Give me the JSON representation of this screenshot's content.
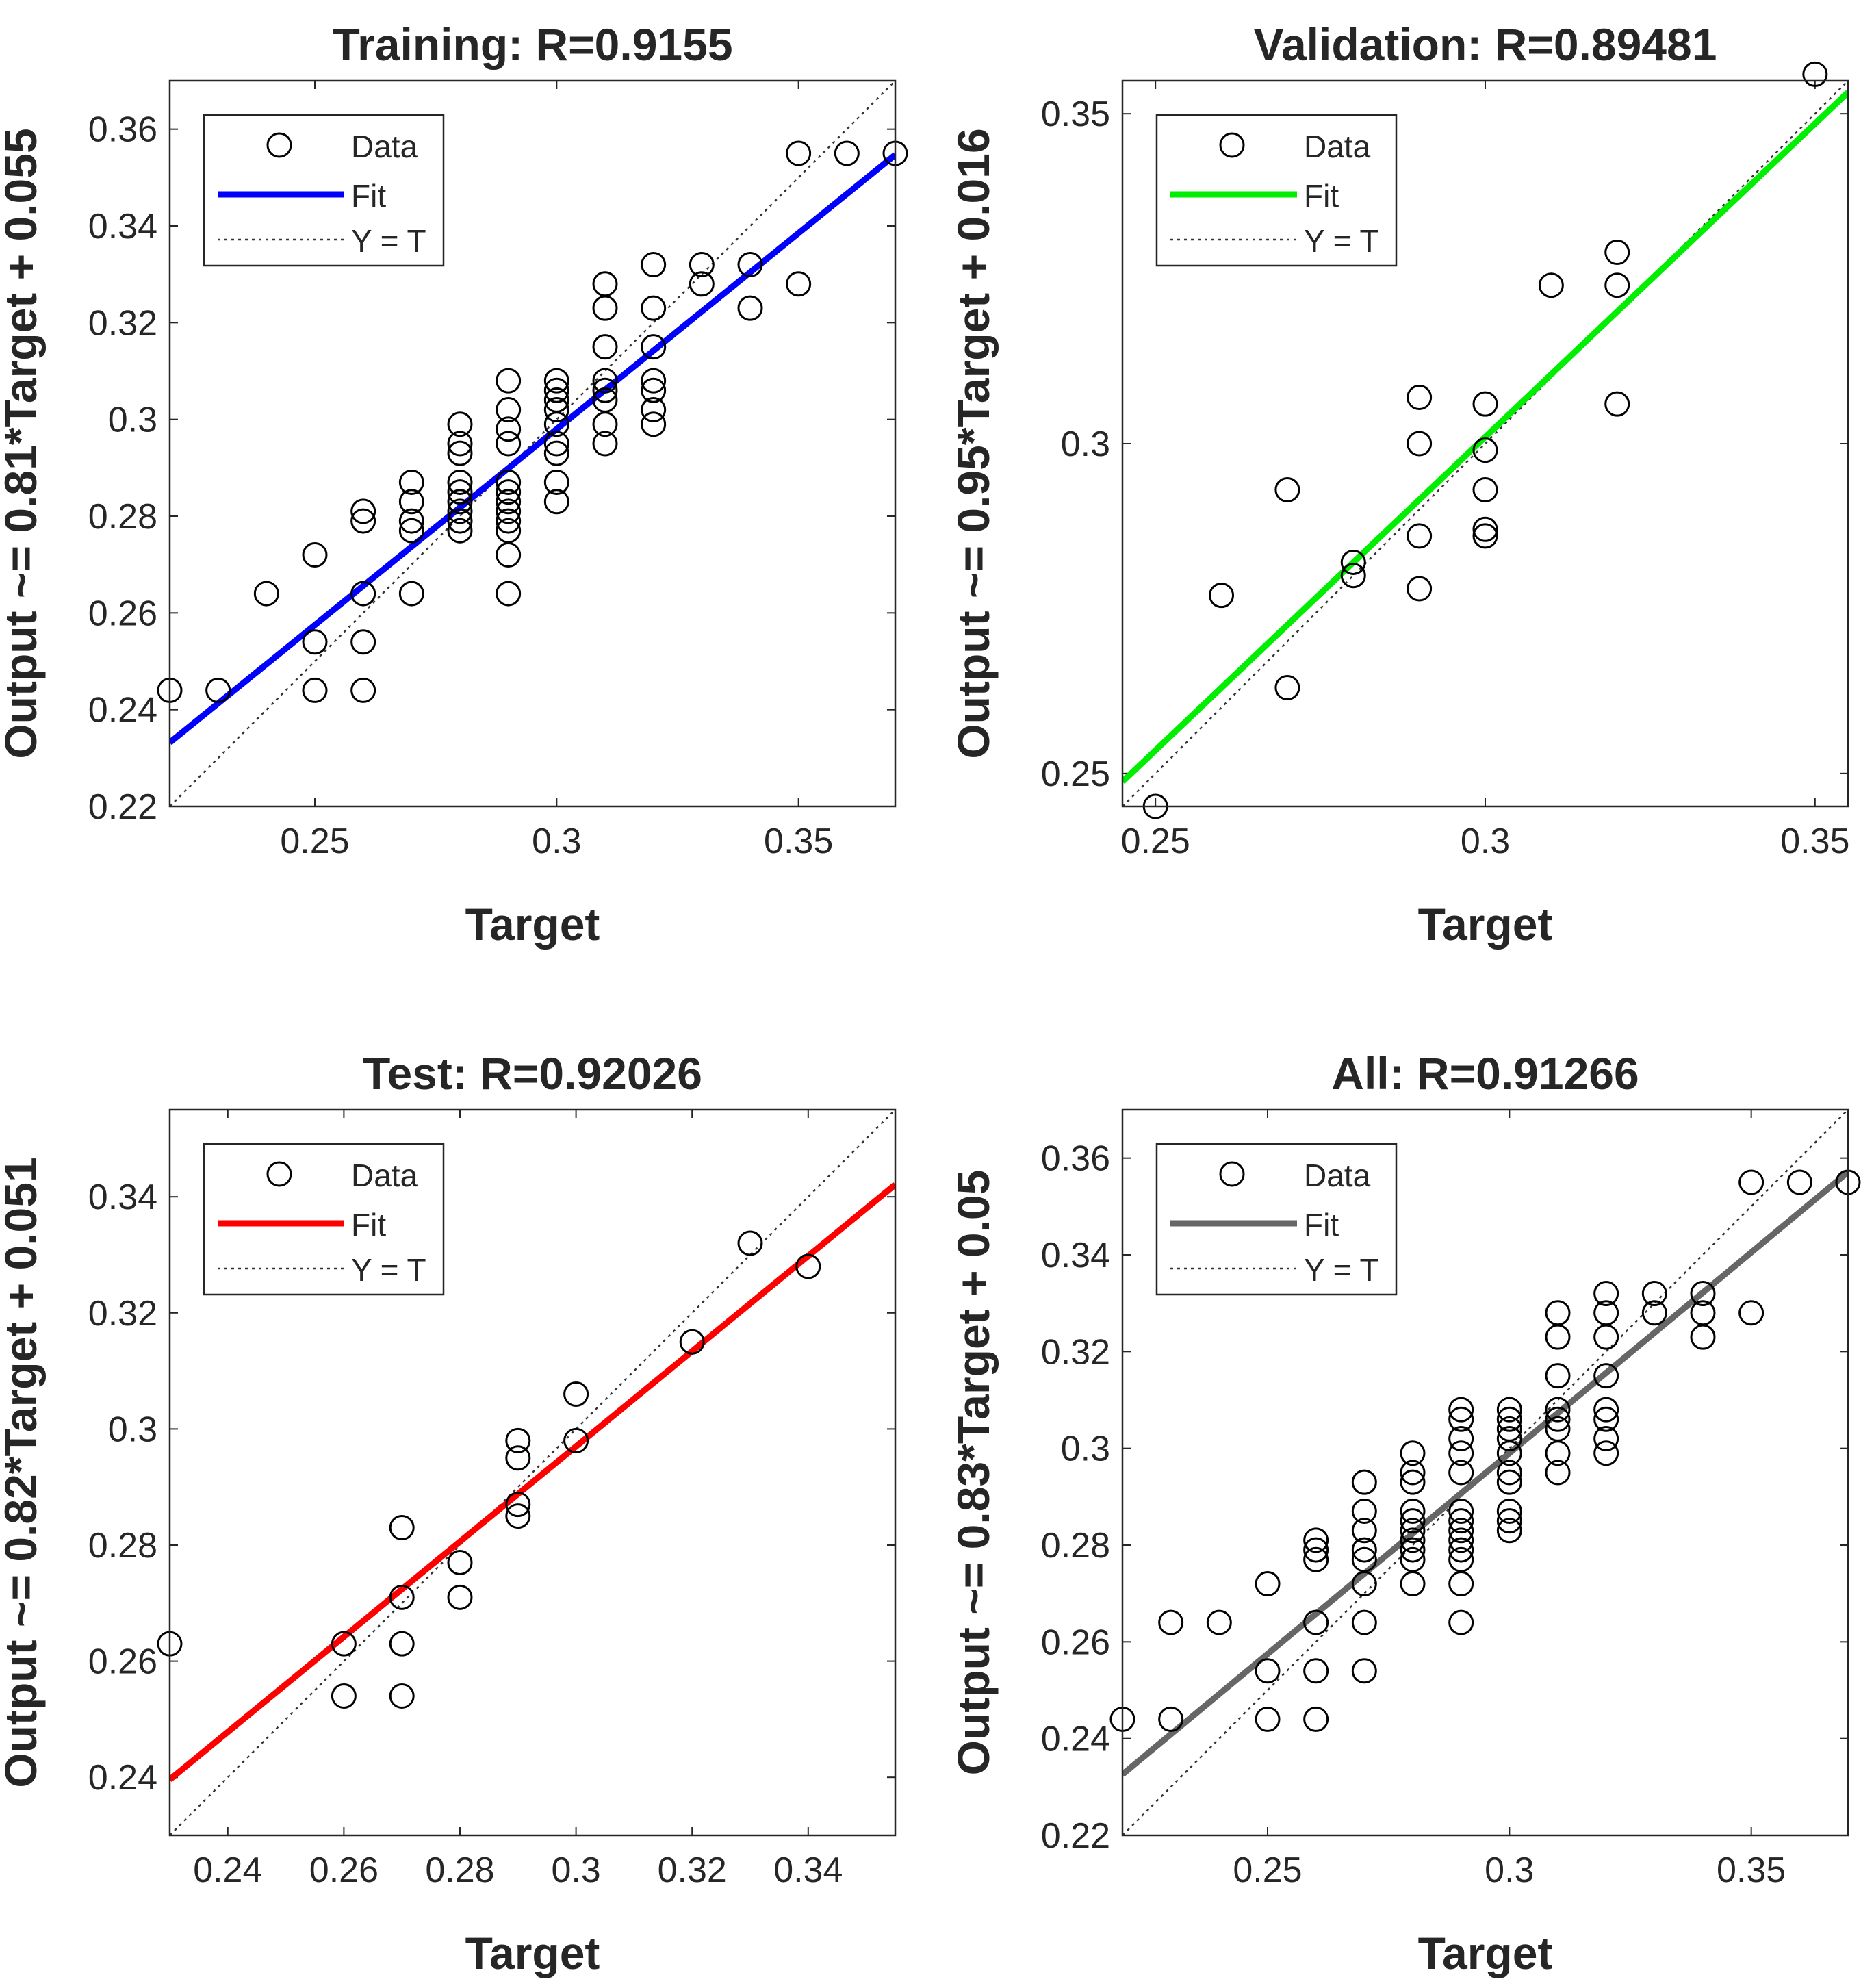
{
  "chart_data": [
    {
      "type": "scatter",
      "title": "Training: R=0.9155",
      "xlabel": "Target",
      "ylabel": "Output ~= 0.81*Target + 0.055",
      "xlim": [
        0.22,
        0.37
      ],
      "ylim": [
        0.22,
        0.37
      ],
      "xticks": [
        0.25,
        0.3,
        0.35
      ],
      "xtick_labels": [
        "0.25",
        "0.3",
        "0.35"
      ],
      "yticks": [
        0.22,
        0.24,
        0.26,
        0.28,
        0.3,
        0.32,
        0.34,
        0.36
      ],
      "ytick_labels": [
        "0.22",
        "0.24",
        "0.26",
        "0.28",
        "0.3",
        "0.32",
        "0.34",
        "0.36"
      ],
      "fit": {
        "slope": 0.81,
        "intercept": 0.055,
        "color": "#0000ff"
      },
      "legend": {
        "position": "top-left",
        "entries": [
          "Data",
          "Fit",
          "Y = T"
        ]
      },
      "points": [
        [
          0.22,
          0.244
        ],
        [
          0.23,
          0.244
        ],
        [
          0.24,
          0.264
        ],
        [
          0.25,
          0.272
        ],
        [
          0.25,
          0.254
        ],
        [
          0.25,
          0.244
        ],
        [
          0.26,
          0.281
        ],
        [
          0.26,
          0.279
        ],
        [
          0.26,
          0.264
        ],
        [
          0.26,
          0.254
        ],
        [
          0.26,
          0.244
        ],
        [
          0.27,
          0.287
        ],
        [
          0.27,
          0.283
        ],
        [
          0.27,
          0.279
        ],
        [
          0.27,
          0.277
        ],
        [
          0.27,
          0.264
        ],
        [
          0.28,
          0.299
        ],
        [
          0.28,
          0.295
        ],
        [
          0.28,
          0.293
        ],
        [
          0.28,
          0.287
        ],
        [
          0.28,
          0.285
        ],
        [
          0.28,
          0.283
        ],
        [
          0.28,
          0.281
        ],
        [
          0.28,
          0.279
        ],
        [
          0.28,
          0.277
        ],
        [
          0.29,
          0.308
        ],
        [
          0.29,
          0.302
        ],
        [
          0.29,
          0.298
        ],
        [
          0.29,
          0.295
        ],
        [
          0.29,
          0.287
        ],
        [
          0.29,
          0.285
        ],
        [
          0.29,
          0.283
        ],
        [
          0.29,
          0.281
        ],
        [
          0.29,
          0.279
        ],
        [
          0.29,
          0.277
        ],
        [
          0.29,
          0.272
        ],
        [
          0.29,
          0.264
        ],
        [
          0.3,
          0.308
        ],
        [
          0.3,
          0.306
        ],
        [
          0.3,
          0.304
        ],
        [
          0.3,
          0.302
        ],
        [
          0.3,
          0.299
        ],
        [
          0.3,
          0.295
        ],
        [
          0.3,
          0.293
        ],
        [
          0.3,
          0.287
        ],
        [
          0.3,
          0.283
        ],
        [
          0.31,
          0.328
        ],
        [
          0.31,
          0.323
        ],
        [
          0.31,
          0.315
        ],
        [
          0.31,
          0.308
        ],
        [
          0.31,
          0.306
        ],
        [
          0.31,
          0.304
        ],
        [
          0.31,
          0.299
        ],
        [
          0.31,
          0.295
        ],
        [
          0.32,
          0.332
        ],
        [
          0.32,
          0.323
        ],
        [
          0.32,
          0.315
        ],
        [
          0.32,
          0.308
        ],
        [
          0.32,
          0.306
        ],
        [
          0.32,
          0.302
        ],
        [
          0.32,
          0.299
        ],
        [
          0.33,
          0.332
        ],
        [
          0.33,
          0.328
        ],
        [
          0.34,
          0.332
        ],
        [
          0.34,
          0.323
        ],
        [
          0.35,
          0.355
        ],
        [
          0.35,
          0.328
        ],
        [
          0.36,
          0.355
        ],
        [
          0.37,
          0.355
        ]
      ]
    },
    {
      "type": "scatter",
      "title": "Validation: R=0.89481",
      "xlabel": "Target",
      "ylabel": "Output ~= 0.95*Target + 0.016",
      "xlim": [
        0.245,
        0.355
      ],
      "ylim": [
        0.245,
        0.355
      ],
      "xticks": [
        0.25,
        0.3,
        0.35
      ],
      "xtick_labels": [
        "0.25",
        "0.3",
        "0.35"
      ],
      "yticks": [
        0.25,
        0.3,
        0.35
      ],
      "ytick_labels": [
        "0.25",
        "0.3",
        "0.35"
      ],
      "fit": {
        "slope": 0.95,
        "intercept": 0.016,
        "color": "#00ee00"
      },
      "legend": {
        "position": "top-left",
        "entries": [
          "Data",
          "Fit",
          "Y = T"
        ]
      },
      "points": [
        [
          0.25,
          0.245
        ],
        [
          0.26,
          0.277
        ],
        [
          0.27,
          0.263
        ],
        [
          0.27,
          0.293
        ],
        [
          0.28,
          0.282
        ],
        [
          0.28,
          0.28
        ],
        [
          0.29,
          0.307
        ],
        [
          0.29,
          0.3
        ],
        [
          0.29,
          0.286
        ],
        [
          0.29,
          0.278
        ],
        [
          0.3,
          0.306
        ],
        [
          0.3,
          0.299
        ],
        [
          0.3,
          0.293
        ],
        [
          0.3,
          0.287
        ],
        [
          0.3,
          0.286
        ],
        [
          0.31,
          0.324
        ],
        [
          0.32,
          0.329
        ],
        [
          0.32,
          0.324
        ],
        [
          0.32,
          0.306
        ],
        [
          0.35,
          0.356
        ]
      ]
    },
    {
      "type": "scatter",
      "title": "Test: R=0.92026",
      "xlabel": "Target",
      "ylabel": "Output ~= 0.82*Target + 0.051",
      "xlim": [
        0.23,
        0.355
      ],
      "ylim": [
        0.23,
        0.355
      ],
      "xticks": [
        0.24,
        0.26,
        0.28,
        0.3,
        0.32,
        0.34
      ],
      "xtick_labels": [
        "0.24",
        "0.26",
        "0.28",
        "0.3",
        "0.32",
        "0.34"
      ],
      "yticks": [
        0.24,
        0.26,
        0.28,
        0.3,
        0.32,
        0.34
      ],
      "ytick_labels": [
        "0.24",
        "0.26",
        "0.28",
        "0.3",
        "0.32",
        "0.34"
      ],
      "fit": {
        "slope": 0.82,
        "intercept": 0.051,
        "color": "#ff0000"
      },
      "legend": {
        "position": "top-left",
        "entries": [
          "Data",
          "Fit",
          "Y = T"
        ]
      },
      "points": [
        [
          0.23,
          0.263
        ],
        [
          0.26,
          0.263
        ],
        [
          0.26,
          0.254
        ],
        [
          0.27,
          0.283
        ],
        [
          0.27,
          0.271
        ],
        [
          0.27,
          0.263
        ],
        [
          0.27,
          0.254
        ],
        [
          0.28,
          0.277
        ],
        [
          0.28,
          0.271
        ],
        [
          0.29,
          0.298
        ],
        [
          0.29,
          0.295
        ],
        [
          0.29,
          0.287
        ],
        [
          0.29,
          0.285
        ],
        [
          0.3,
          0.306
        ],
        [
          0.3,
          0.298
        ],
        [
          0.32,
          0.315
        ],
        [
          0.33,
          0.332
        ],
        [
          0.34,
          0.328
        ]
      ]
    },
    {
      "type": "scatter",
      "title": "All: R=0.91266",
      "xlabel": "Target",
      "ylabel": "Output ~= 0.83*Target + 0.05",
      "xlim": [
        0.22,
        0.37
      ],
      "ylim": [
        0.22,
        0.37
      ],
      "xticks": [
        0.25,
        0.3,
        0.35
      ],
      "xtick_labels": [
        "0.25",
        "0.3",
        "0.35"
      ],
      "yticks": [
        0.22,
        0.24,
        0.26,
        0.28,
        0.3,
        0.32,
        0.34,
        0.36
      ],
      "ytick_labels": [
        "0.22",
        "0.24",
        "0.26",
        "0.28",
        "0.3",
        "0.32",
        "0.34",
        "0.36"
      ],
      "fit": {
        "slope": 0.83,
        "intercept": 0.05,
        "color": "#666666"
      },
      "legend": {
        "position": "top-left",
        "entries": [
          "Data",
          "Fit",
          "Y = T"
        ]
      },
      "points": [
        [
          0.22,
          0.244
        ],
        [
          0.23,
          0.264
        ],
        [
          0.23,
          0.244
        ],
        [
          0.24,
          0.264
        ],
        [
          0.25,
          0.272
        ],
        [
          0.25,
          0.254
        ],
        [
          0.25,
          0.244
        ],
        [
          0.26,
          0.281
        ],
        [
          0.26,
          0.279
        ],
        [
          0.26,
          0.277
        ],
        [
          0.26,
          0.264
        ],
        [
          0.26,
          0.254
        ],
        [
          0.26,
          0.244
        ],
        [
          0.27,
          0.293
        ],
        [
          0.27,
          0.287
        ],
        [
          0.27,
          0.283
        ],
        [
          0.27,
          0.279
        ],
        [
          0.27,
          0.277
        ],
        [
          0.27,
          0.272
        ],
        [
          0.27,
          0.264
        ],
        [
          0.27,
          0.254
        ],
        [
          0.28,
          0.299
        ],
        [
          0.28,
          0.295
        ],
        [
          0.28,
          0.293
        ],
        [
          0.28,
          0.287
        ],
        [
          0.28,
          0.285
        ],
        [
          0.28,
          0.283
        ],
        [
          0.28,
          0.281
        ],
        [
          0.28,
          0.279
        ],
        [
          0.28,
          0.277
        ],
        [
          0.28,
          0.272
        ],
        [
          0.29,
          0.308
        ],
        [
          0.29,
          0.306
        ],
        [
          0.29,
          0.302
        ],
        [
          0.29,
          0.299
        ],
        [
          0.29,
          0.295
        ],
        [
          0.29,
          0.287
        ],
        [
          0.29,
          0.285
        ],
        [
          0.29,
          0.283
        ],
        [
          0.29,
          0.281
        ],
        [
          0.29,
          0.279
        ],
        [
          0.29,
          0.277
        ],
        [
          0.29,
          0.272
        ],
        [
          0.29,
          0.264
        ],
        [
          0.3,
          0.308
        ],
        [
          0.3,
          0.306
        ],
        [
          0.3,
          0.304
        ],
        [
          0.3,
          0.302
        ],
        [
          0.3,
          0.299
        ],
        [
          0.3,
          0.295
        ],
        [
          0.3,
          0.293
        ],
        [
          0.3,
          0.287
        ],
        [
          0.3,
          0.285
        ],
        [
          0.3,
          0.283
        ],
        [
          0.31,
          0.328
        ],
        [
          0.31,
          0.323
        ],
        [
          0.31,
          0.315
        ],
        [
          0.31,
          0.308
        ],
        [
          0.31,
          0.306
        ],
        [
          0.31,
          0.304
        ],
        [
          0.31,
          0.299
        ],
        [
          0.31,
          0.295
        ],
        [
          0.32,
          0.332
        ],
        [
          0.32,
          0.328
        ],
        [
          0.32,
          0.323
        ],
        [
          0.32,
          0.315
        ],
        [
          0.32,
          0.308
        ],
        [
          0.32,
          0.306
        ],
        [
          0.32,
          0.302
        ],
        [
          0.32,
          0.299
        ],
        [
          0.33,
          0.332
        ],
        [
          0.33,
          0.328
        ],
        [
          0.34,
          0.332
        ],
        [
          0.34,
          0.328
        ],
        [
          0.34,
          0.323
        ],
        [
          0.35,
          0.355
        ],
        [
          0.35,
          0.328
        ],
        [
          0.36,
          0.355
        ],
        [
          0.37,
          0.355
        ]
      ]
    }
  ]
}
